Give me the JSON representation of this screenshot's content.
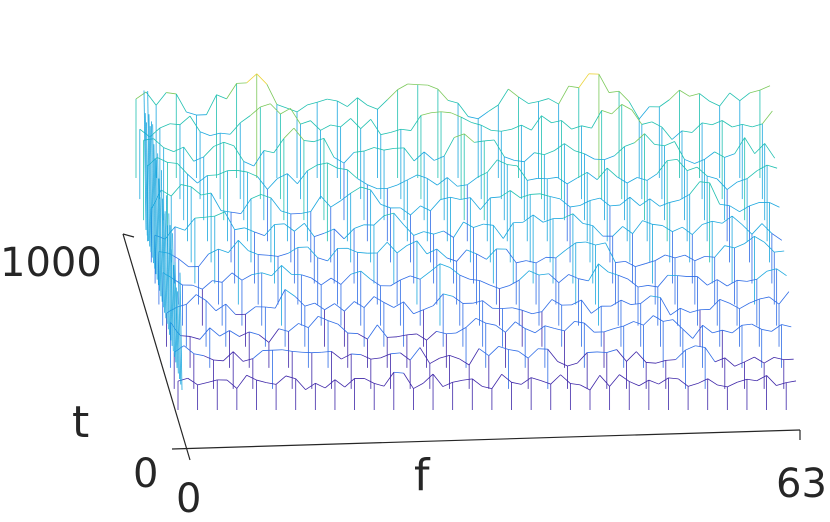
{
  "chart_data": {
    "type": "surface-mesh",
    "title": "",
    "xlabel": "f",
    "ylabel": "t",
    "zlabel": "",
    "x_ticks": [
      "0",
      "63"
    ],
    "y_ticks": [
      "0",
      "1000"
    ],
    "xlim": [
      0,
      63
    ],
    "ylim": [
      0,
      1000
    ],
    "grid": false,
    "colormap": "parula",
    "colors": [
      "#3e26a8",
      "#2f6ce6",
      "#1ba7de",
      "#20c0b0",
      "#7cc95b",
      "#ecd33a"
    ],
    "n_time_slices": 12
  }
}
